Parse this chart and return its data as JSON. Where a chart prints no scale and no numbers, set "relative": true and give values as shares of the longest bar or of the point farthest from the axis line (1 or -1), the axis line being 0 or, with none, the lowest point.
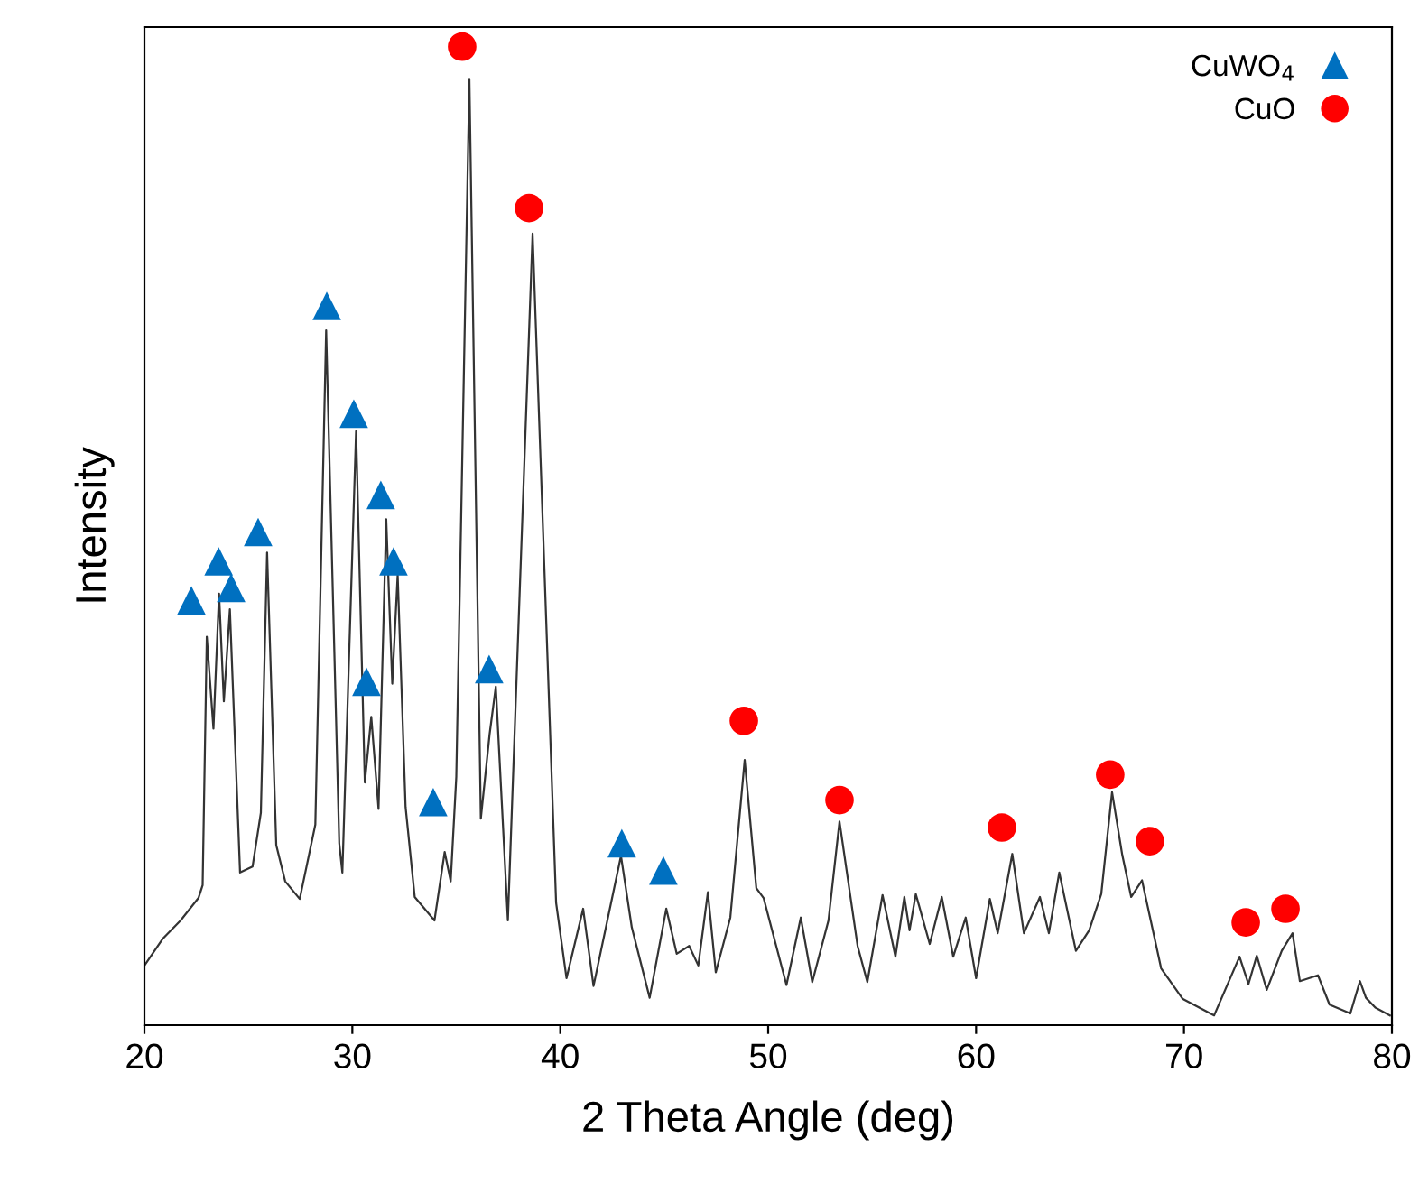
{
  "chart_data": {
    "type": "line",
    "relative": true,
    "xlabel": "2 Theta Angle (deg)",
    "ylabel": "Intensity",
    "xlim": [
      20,
      80
    ],
    "xticks": [
      20,
      30,
      40,
      50,
      60,
      70,
      80
    ],
    "legend": "top right",
    "grid": false,
    "tick_labels": "x",
    "series": [
      {
        "color": "#333333",
        "marker": "none",
        "x": [
          20.0,
          20.87,
          21.74,
          22.6,
          22.8,
          23.0,
          23.32,
          23.59,
          23.82,
          24.11,
          24.6,
          25.2,
          25.6,
          25.9,
          26.34,
          26.77,
          27.47,
          28.22,
          28.74,
          29.37,
          29.52,
          30.18,
          30.6,
          30.91,
          31.26,
          31.63,
          31.92,
          32.18,
          32.56,
          33.0,
          33.95,
          34.44,
          34.73,
          35.0,
          35.63,
          36.18,
          36.6,
          36.9,
          37.48,
          38.67,
          39.8,
          40.3,
          41.1,
          41.6,
          42.92,
          43.44,
          44.3,
          45.1,
          45.6,
          46.2,
          46.64,
          47.1,
          47.48,
          48.18,
          48.87,
          49.43,
          49.78,
          50.88,
          51.57,
          52.12,
          52.9,
          53.43,
          54.3,
          54.77,
          55.5,
          56.12,
          56.55,
          56.8,
          57.1,
          57.77,
          58.35,
          58.9,
          59.5,
          60.0,
          60.66,
          61.04,
          61.74,
          62.3,
          63.07,
          63.5,
          64.0,
          64.8,
          65.44,
          66.02,
          66.54,
          67.03,
          67.46,
          67.98,
          68.9,
          69.93,
          71.45,
          72.67,
          73.1,
          73.5,
          73.98,
          74.7,
          75.22,
          75.57,
          76.44,
          77.0,
          78.0,
          78.46,
          78.75,
          79.2,
          79.9
        ],
        "values": [
          0.061,
          0.088,
          0.107,
          0.13,
          0.143,
          0.397,
          0.303,
          0.441,
          0.331,
          0.425,
          0.156,
          0.162,
          0.217,
          0.483,
          0.184,
          0.147,
          0.129,
          0.205,
          0.71,
          0.186,
          0.156,
          0.607,
          0.248,
          0.315,
          0.221,
          0.517,
          0.349,
          0.46,
          0.223,
          0.131,
          0.107,
          0.177,
          0.147,
          0.254,
          0.967,
          0.211,
          0.297,
          0.346,
          0.107,
          0.809,
          0.125,
          0.048,
          0.119,
          0.04,
          0.173,
          0.1,
          0.028,
          0.119,
          0.073,
          0.081,
          0.061,
          0.136,
          0.054,
          0.11,
          0.271,
          0.14,
          0.13,
          0.041,
          0.11,
          0.044,
          0.107,
          0.208,
          0.081,
          0.044,
          0.133,
          0.07,
          0.131,
          0.097,
          0.134,
          0.083,
          0.131,
          0.07,
          0.11,
          0.048,
          0.129,
          0.094,
          0.175,
          0.094,
          0.131,
          0.094,
          0.156,
          0.076,
          0.097,
          0.134,
          0.238,
          0.174,
          0.131,
          0.148,
          0.058,
          0.027,
          0.01,
          0.07,
          0.042,
          0.071,
          0.036,
          0.076,
          0.094,
          0.045,
          0.051,
          0.021,
          0.012,
          0.045,
          0.028,
          0.018,
          0.01
        ]
      },
      {
        "type": "scatter",
        "name": "CuWO$_{4}$",
        "color": "#0070c0",
        "marker": "triangle",
        "x": [
          22.26,
          23.57,
          24.17,
          25.47,
          28.77,
          30.07,
          30.68,
          31.37,
          31.98,
          33.89,
          36.58,
          42.96,
          44.96
        ],
        "values": [
          0.434,
          0.474,
          0.447,
          0.504,
          0.735,
          0.625,
          0.351,
          0.542,
          0.474,
          0.228,
          0.364,
          0.186,
          0.158
        ]
      },
      {
        "type": "scatter",
        "name": "CuO",
        "color": "#ff0000",
        "marker": "circle",
        "x": [
          35.28,
          38.5,
          48.83,
          53.43,
          61.24,
          66.45,
          68.36,
          72.97,
          74.88
        ],
        "values": [
          1.0,
          0.835,
          0.311,
          0.23,
          0.202,
          0.256,
          0.188,
          0.105,
          0.119
        ]
      }
    ]
  }
}
